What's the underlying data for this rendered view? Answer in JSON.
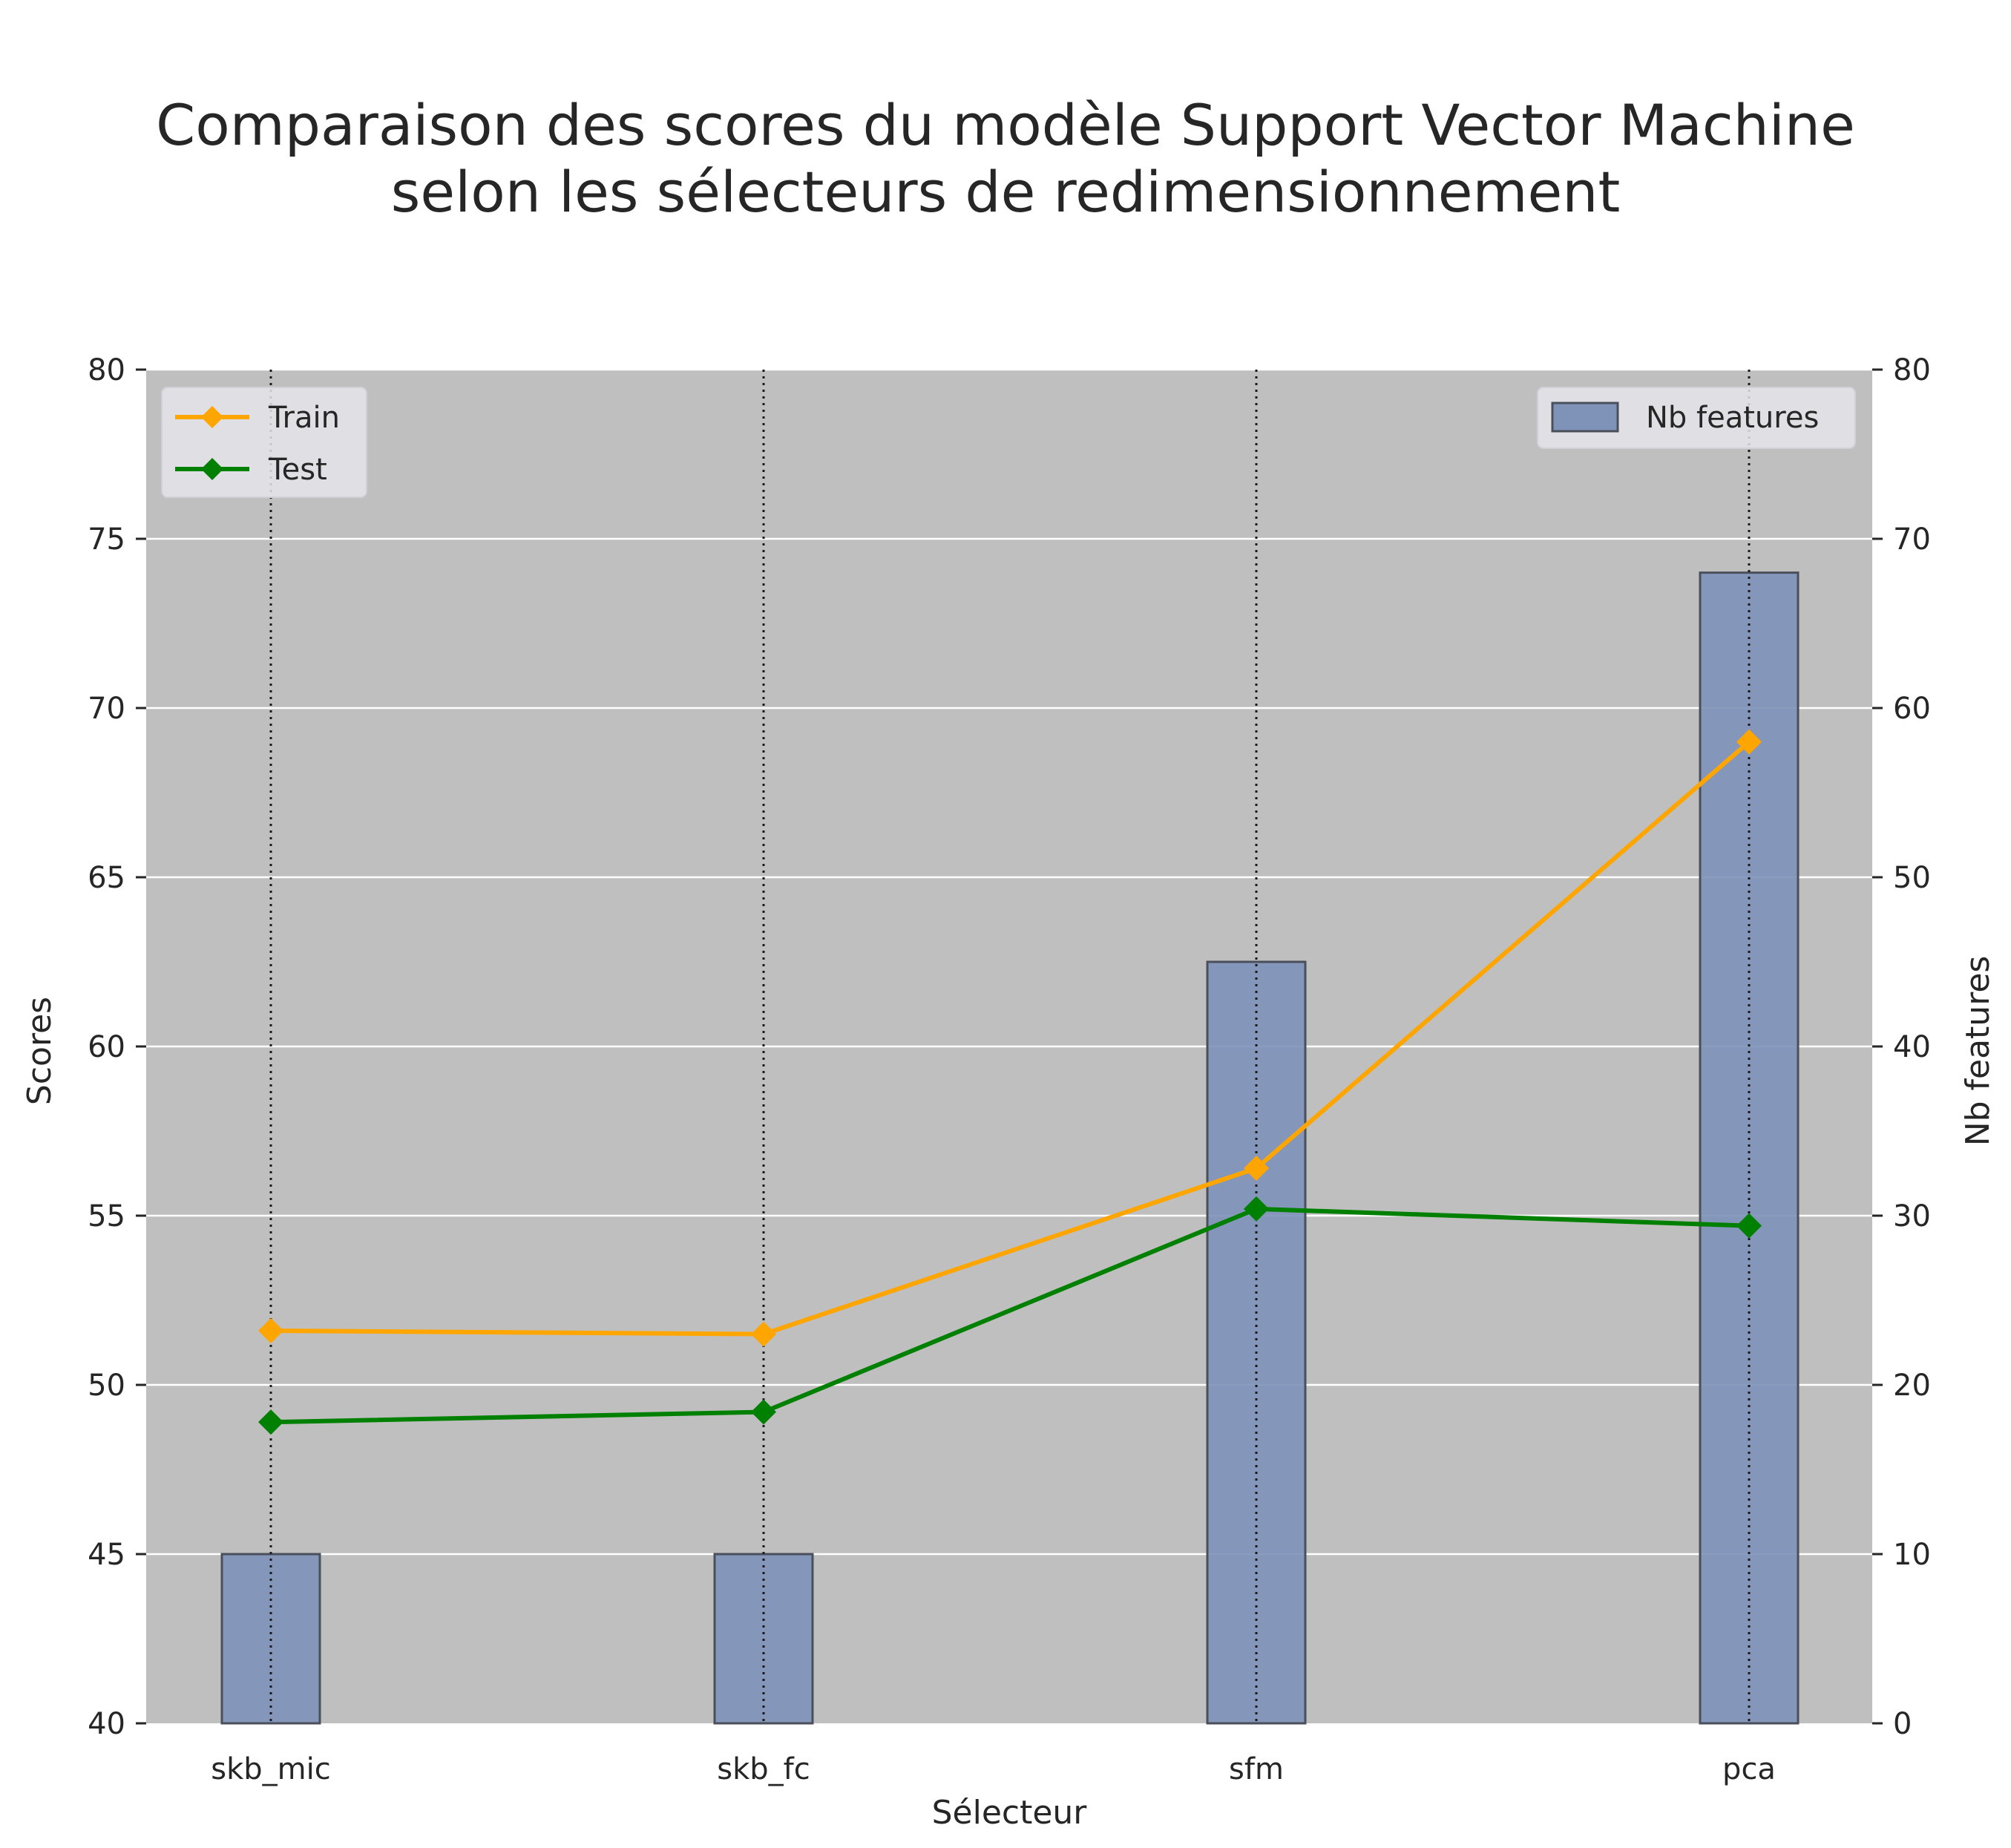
{
  "chart_data": {
    "type": "bar",
    "title_lines": [
      "Comparaison des scores du modèle Support Vector Machine",
      "selon les sélecteurs de redimensionnement"
    ],
    "xlabel": "Sélecteur",
    "ylabel_left": "Scores",
    "ylabel_right": "Nb features",
    "categories": [
      "skb_mic",
      "skb_fc",
      "sfm",
      "pca"
    ],
    "ylim_left": [
      40,
      80
    ],
    "yticks_left": [
      40,
      45,
      50,
      55,
      60,
      65,
      70,
      75,
      80
    ],
    "ylim_right": [
      0,
      80
    ],
    "yticks_right": [
      0,
      10,
      20,
      30,
      40,
      50,
      60,
      70,
      80
    ],
    "grid": true,
    "bars": {
      "name": "Nb features",
      "axis": "right",
      "values": [
        10,
        10,
        45,
        68
      ],
      "color": "#7f93b8"
    },
    "series": [
      {
        "name": "Train",
        "axis": "left",
        "type": "line",
        "marker": "diamond",
        "color": "#ffa500",
        "values": [
          51.6,
          51.5,
          56.4,
          69.0
        ]
      },
      {
        "name": "Test",
        "axis": "left",
        "type": "line",
        "marker": "diamond",
        "color": "#008000",
        "values": [
          48.9,
          49.2,
          55.2,
          54.7
        ]
      }
    ],
    "legend_lines": "top-left",
    "legend_bars": "top-right",
    "plot_background": "#bfbfbf"
  }
}
